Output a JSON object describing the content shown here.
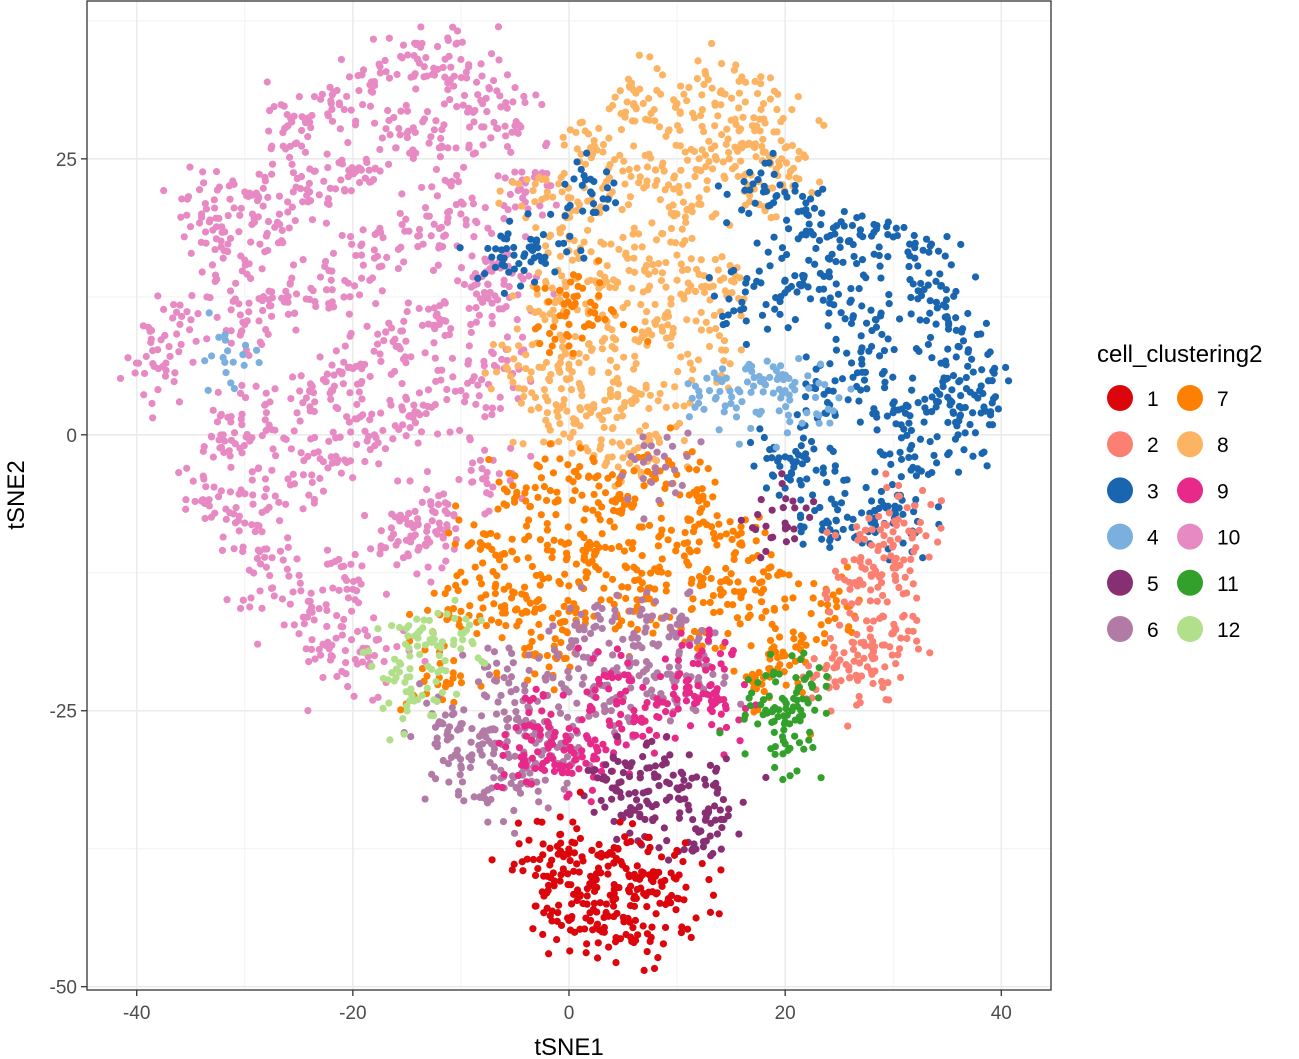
{
  "chart_data": {
    "type": "scatter",
    "xlabel": "tSNE1",
    "ylabel": "tSNE2",
    "xlim": [
      -44.6,
      44.6
    ],
    "ylim": [
      -50.3,
      39.3
    ],
    "xticks": [
      -40,
      -20,
      0,
      20,
      40
    ],
    "yticks": [
      -50,
      -25,
      0,
      25
    ],
    "grid": true,
    "legend": {
      "title": "cell_clustering2",
      "placement": "right",
      "columns": 2,
      "entries": [
        "1",
        "2",
        "3",
        "4",
        "5",
        "6",
        "7",
        "8",
        "9",
        "10",
        "11",
        "12"
      ]
    },
    "colors": {
      "1": "#DC050C",
      "2": "#FB8072",
      "3": "#1965B0",
      "4": "#7BAFDE",
      "5": "#882E72",
      "6": "#B17BA6",
      "7": "#FF7F00",
      "8": "#FDB462",
      "9": "#E7298A",
      "10": "#E78AC3",
      "11": "#33A02C",
      "12": "#B2DF8A"
    },
    "draw_order": [
      "10",
      "8",
      "3",
      "7",
      "6",
      "9",
      "2",
      "12",
      "11",
      "5",
      "1",
      "4"
    ],
    "clusters": {
      "10": [
        [
          -38,
          6
        ],
        [
          -36,
          10
        ],
        [
          -34,
          20
        ],
        [
          -32,
          16
        ],
        [
          -30,
          22
        ],
        [
          -26,
          28
        ],
        [
          -22,
          30
        ],
        [
          -18,
          32
        ],
        [
          -14,
          34
        ],
        [
          -10,
          34
        ],
        [
          -8,
          30
        ],
        [
          -12,
          26
        ],
        [
          -16,
          26
        ],
        [
          -20,
          24
        ],
        [
          -24,
          22
        ],
        [
          -28,
          18
        ],
        [
          -30,
          10
        ],
        [
          -26,
          12
        ],
        [
          -22,
          14
        ],
        [
          -18,
          16
        ],
        [
          -14,
          18
        ],
        [
          -10,
          20
        ],
        [
          -8,
          12
        ],
        [
          -12,
          10
        ],
        [
          -16,
          8
        ],
        [
          -20,
          6
        ],
        [
          -24,
          4
        ],
        [
          -28,
          2
        ],
        [
          -32,
          0
        ],
        [
          -34,
          -6
        ],
        [
          -30,
          -8
        ],
        [
          -26,
          -4
        ],
        [
          -22,
          -2
        ],
        [
          -18,
          0
        ],
        [
          -14,
          2
        ],
        [
          -10,
          4
        ],
        [
          -6,
          6
        ],
        [
          -8,
          -4
        ],
        [
          -12,
          -8
        ],
        [
          -16,
          -10
        ],
        [
          -20,
          -14
        ],
        [
          -24,
          -16
        ],
        [
          -28,
          -12
        ],
        [
          -22,
          -20
        ],
        [
          -18,
          -20
        ],
        [
          -14,
          -8
        ],
        [
          -6,
          14
        ],
        [
          -4,
          22
        ],
        [
          -5,
          28
        ]
      ],
      "8": [
        [
          -2,
          22
        ],
        [
          2,
          26
        ],
        [
          6,
          30
        ],
        [
          10,
          30
        ],
        [
          14,
          31
        ],
        [
          18,
          30
        ],
        [
          20,
          26
        ],
        [
          16,
          26
        ],
        [
          12,
          24
        ],
        [
          8,
          24
        ],
        [
          4,
          22
        ],
        [
          0,
          18
        ],
        [
          -2,
          12
        ],
        [
          2,
          14
        ],
        [
          6,
          16
        ],
        [
          10,
          14
        ],
        [
          14,
          14
        ],
        [
          8,
          10
        ],
        [
          4,
          8
        ],
        [
          0,
          6
        ],
        [
          -2,
          2
        ],
        [
          2,
          2
        ],
        [
          6,
          4
        ],
        [
          8,
          0
        ],
        [
          4,
          -2
        ],
        [
          10,
          20
        ],
        [
          18,
          22
        ],
        [
          13,
          8
        ],
        [
          -4,
          6
        ]
      ],
      "3": [
        [
          18,
          22
        ],
        [
          22,
          20
        ],
        [
          16,
          12
        ],
        [
          20,
          14
        ],
        [
          24,
          16
        ],
        [
          28,
          18
        ],
        [
          32,
          16
        ],
        [
          34,
          12
        ],
        [
          36,
          8
        ],
        [
          38,
          4
        ],
        [
          36,
          0
        ],
        [
          32,
          -2
        ],
        [
          28,
          -6
        ],
        [
          24,
          -8
        ],
        [
          22,
          -4
        ],
        [
          20,
          -2
        ],
        [
          24,
          4
        ],
        [
          28,
          8
        ],
        [
          30,
          2
        ],
        [
          26,
          12
        ],
        [
          34,
          4
        ],
        [
          30,
          -8
        ],
        [
          -6,
          16
        ],
        [
          -3,
          17
        ],
        [
          2,
          22
        ]
      ],
      "4": [
        [
          13,
          4
        ],
        [
          16,
          3
        ],
        [
          18,
          5
        ],
        [
          20,
          4
        ],
        [
          22,
          2
        ],
        [
          -32,
          7
        ]
      ],
      "7": [
        [
          -8,
          -10
        ],
        [
          -4,
          -6
        ],
        [
          0,
          -4
        ],
        [
          4,
          -6
        ],
        [
          8,
          -4
        ],
        [
          12,
          -6
        ],
        [
          16,
          -10
        ],
        [
          18,
          -14
        ],
        [
          20,
          -20
        ],
        [
          14,
          -14
        ],
        [
          10,
          -10
        ],
        [
          6,
          -12
        ],
        [
          2,
          -10
        ],
        [
          -2,
          -10
        ],
        [
          -6,
          -14
        ],
        [
          -10,
          -16
        ],
        [
          -12,
          -22
        ],
        [
          -4,
          -16
        ],
        [
          0,
          -16
        ],
        [
          6,
          -16
        ],
        [
          12,
          -18
        ],
        [
          18,
          -22
        ],
        [
          24,
          -16
        ],
        [
          0,
          10
        ],
        [
          2,
          12
        ],
        [
          -2,
          -20
        ]
      ],
      "2": [
        [
          26,
          -14
        ],
        [
          28,
          -10
        ],
        [
          30,
          -12
        ],
        [
          30,
          -18
        ],
        [
          28,
          -20
        ],
        [
          26,
          -22
        ],
        [
          31,
          -8
        ],
        [
          24,
          -22
        ]
      ],
      "11": [
        [
          18,
          -24
        ],
        [
          20,
          -26
        ],
        [
          22,
          -24
        ],
        [
          21,
          -22
        ],
        [
          20,
          -28
        ]
      ],
      "12": [
        [
          -14,
          -18
        ],
        [
          -12,
          -20
        ],
        [
          -16,
          -22
        ],
        [
          -10,
          -18
        ],
        [
          -14,
          -24
        ]
      ],
      "6": [
        [
          -12,
          -26
        ],
        [
          -8,
          -28
        ],
        [
          -4,
          -26
        ],
        [
          -6,
          -22
        ],
        [
          -2,
          -28
        ],
        [
          -10,
          -30
        ],
        [
          -6,
          -32
        ],
        [
          2,
          -18
        ],
        [
          6,
          -18
        ],
        [
          10,
          -18
        ],
        [
          4,
          -24
        ],
        [
          8,
          -22
        ],
        [
          12,
          -22
        ],
        [
          0,
          -22
        ],
        [
          -3,
          -30
        ],
        [
          8,
          -3
        ]
      ],
      "9": [
        [
          -2,
          -26
        ],
        [
          2,
          -28
        ],
        [
          6,
          -26
        ],
        [
          10,
          -24
        ],
        [
          14,
          -24
        ],
        [
          -4,
          -30
        ],
        [
          0,
          -30
        ],
        [
          4,
          -22
        ],
        [
          12,
          -20
        ]
      ],
      "5": [
        [
          6,
          -34
        ],
        [
          10,
          -32
        ],
        [
          12,
          -36
        ],
        [
          14,
          -34
        ],
        [
          8,
          -30
        ],
        [
          4,
          -32
        ],
        [
          20,
          -8
        ]
      ],
      "1": [
        [
          -2,
          -40
        ],
        [
          2,
          -40
        ],
        [
          6,
          -42
        ],
        [
          4,
          -38
        ],
        [
          0,
          -44
        ],
        [
          8,
          -40
        ],
        [
          10,
          -42
        ],
        [
          6,
          -46
        ],
        [
          2,
          -44
        ],
        [
          -1,
          -38
        ]
      ]
    }
  }
}
